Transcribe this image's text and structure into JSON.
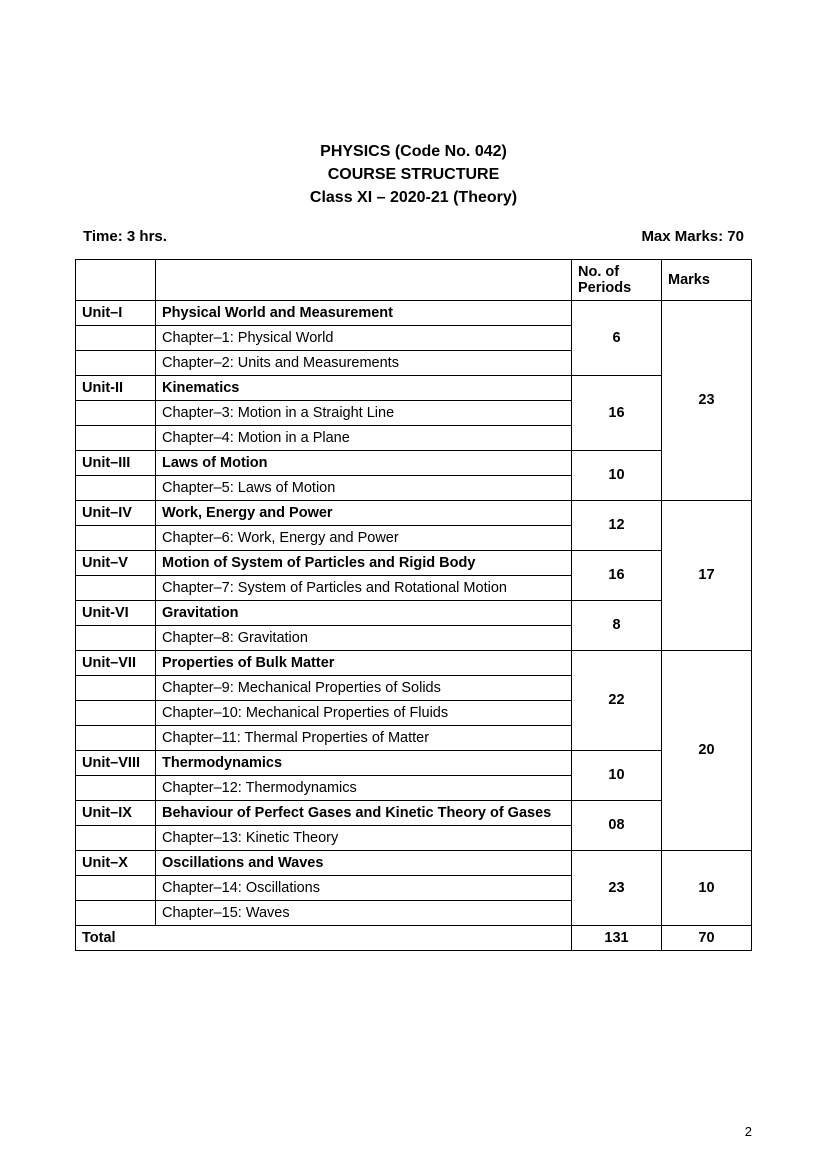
{
  "header": {
    "line1": "PHYSICS (Code No. 042)",
    "line2": "COURSE STRUCTURE",
    "line3": "Class XI – 2020-21 (Theory)"
  },
  "meta": {
    "time": "Time: 3 hrs.",
    "marks": "Max Marks: 70"
  },
  "columns": {
    "unit": "",
    "topic": "",
    "periods": "No. of Periods",
    "marks": "Marks"
  },
  "groups": [
    {
      "marks": "23",
      "units": [
        {
          "unit": "Unit–I",
          "title": "Physical World and Measurement",
          "periods": "6",
          "chapters": [
            "Chapter–1: Physical World",
            "Chapter–2: Units and Measurements"
          ]
        },
        {
          "unit": "Unit-II",
          "title": "Kinematics",
          "periods": "16",
          "chapters": [
            "Chapter–3: Motion in a Straight Line",
            "Chapter–4: Motion in a Plane"
          ]
        },
        {
          "unit": "Unit–III",
          "title": "Laws of Motion",
          "periods": "10",
          "chapters": [
            "Chapter–5: Laws of Motion"
          ]
        }
      ]
    },
    {
      "marks": "17",
      "units": [
        {
          "unit": "Unit–IV",
          "title": "Work, Energy and Power",
          "periods": "12",
          "chapters": [
            "Chapter–6: Work, Energy and Power"
          ]
        },
        {
          "unit": "Unit–V",
          "title": "Motion of System of Particles and Rigid Body",
          "periods": "16",
          "chapters": [
            "Chapter–7: System of Particles and Rotational Motion"
          ]
        },
        {
          "unit": "Unit-VI",
          "title": "Gravitation",
          "periods": "8",
          "chapters": [
            "Chapter–8: Gravitation"
          ]
        }
      ]
    },
    {
      "marks": "20",
      "units": [
        {
          "unit": "Unit–VII",
          "title": "Properties of Bulk Matter",
          "periods": "22",
          "chapters": [
            "Chapter–9: Mechanical Properties of Solids",
            "Chapter–10: Mechanical Properties of Fluids",
            "Chapter–11: Thermal Properties of Matter"
          ]
        },
        {
          "unit": "Unit–VIII",
          "title": "Thermodynamics",
          "periods": "10",
          "chapters": [
            "Chapter–12: Thermodynamics"
          ]
        },
        {
          "unit": "Unit–IX",
          "title": "Behaviour of Perfect Gases and Kinetic Theory of Gases",
          "periods": "08",
          "chapters": [
            "Chapter–13: Kinetic Theory"
          ]
        }
      ]
    },
    {
      "marks": "10",
      "units": [
        {
          "unit": "Unit–X",
          "title": "Oscillations and Waves",
          "periods": "23",
          "chapters": [
            "Chapter–14: Oscillations",
            "Chapter–15: Waves"
          ]
        }
      ]
    }
  ],
  "total": {
    "label": "Total",
    "periods": "131",
    "marks": "70"
  },
  "page_number": "2",
  "style": {
    "background_color": "#ffffff",
    "text_color": "#000000",
    "border_color": "#000000",
    "header_fontsize": 16,
    "body_fontsize": 14.5,
    "font_family": "Arial"
  }
}
